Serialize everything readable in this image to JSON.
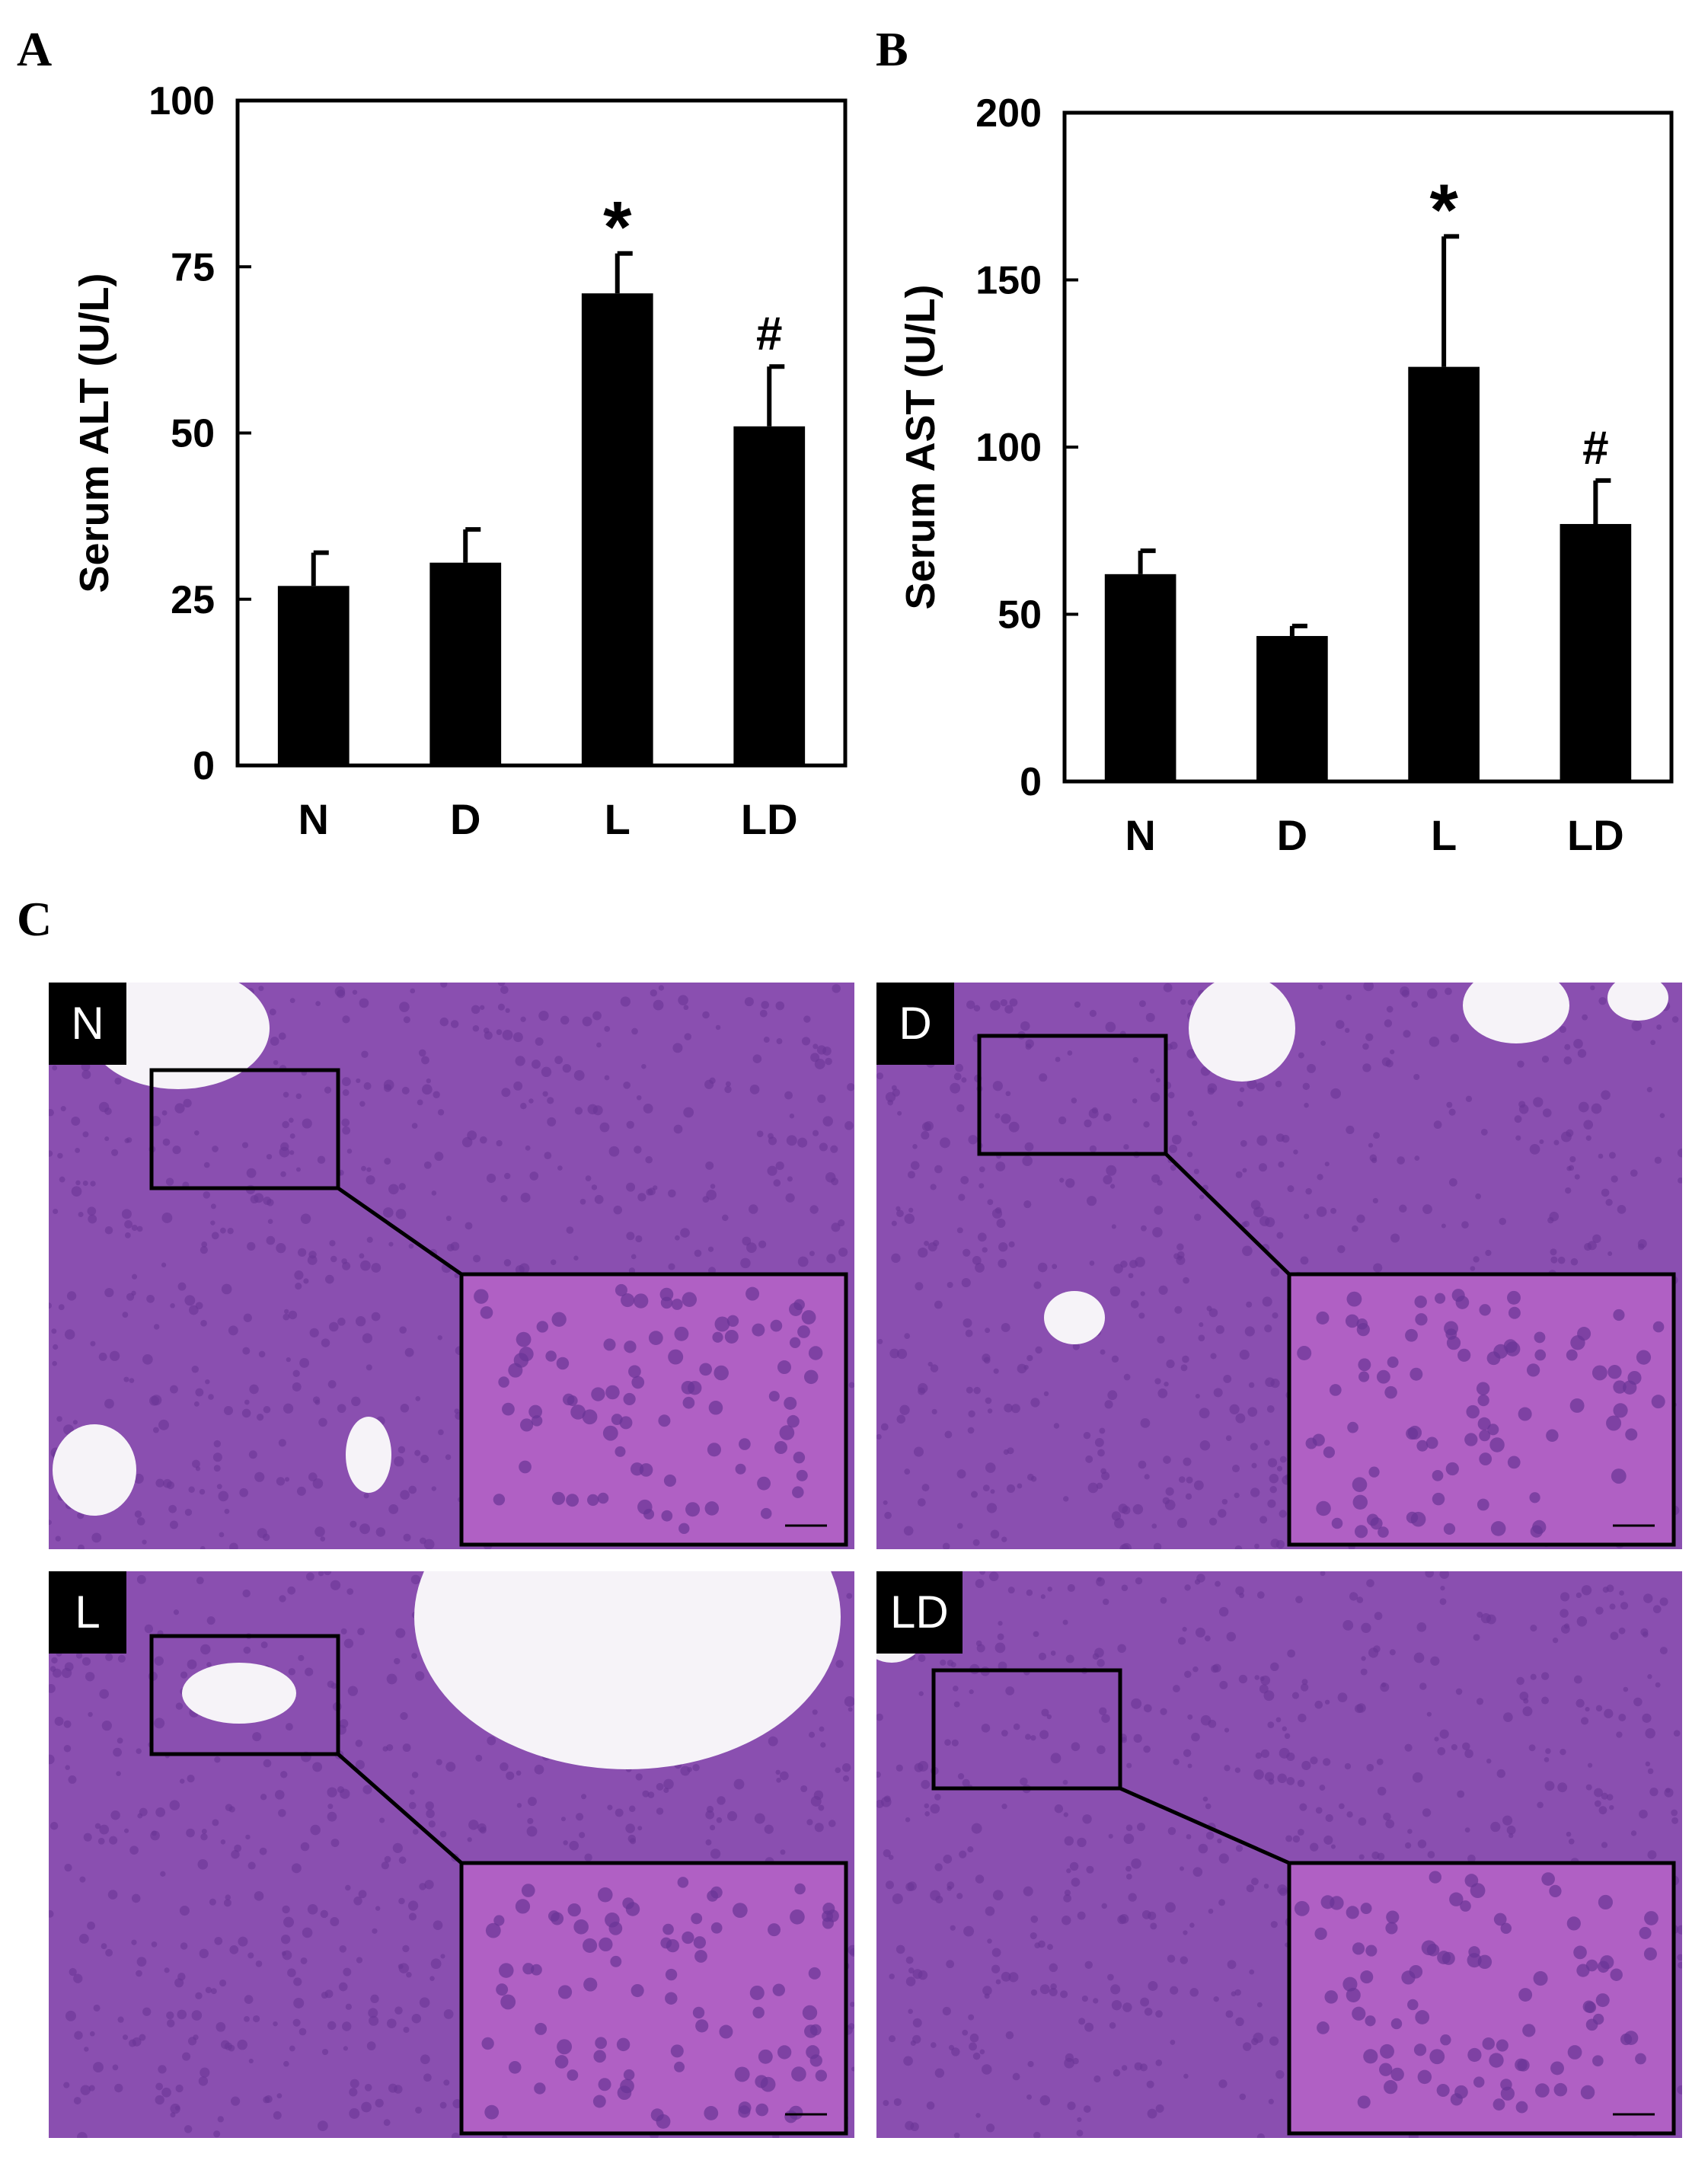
{
  "panels": {
    "a_label": "A",
    "b_label": "B",
    "c_label": "C"
  },
  "chart_data": [
    {
      "type": "bar",
      "categories": [
        "N",
        "D",
        "L",
        "LD"
      ],
      "values": [
        27,
        30.5,
        71,
        51
      ],
      "errors": [
        5,
        5,
        6,
        9
      ],
      "annotations": [
        "",
        "",
        "*",
        "#"
      ],
      "ylabel": "Serum ALT (U/L)",
      "ylim": [
        0,
        100
      ],
      "yticks": [
        0,
        25,
        50,
        75,
        100
      ],
      "grid": false,
      "bar_color": "#000000"
    },
    {
      "type": "bar",
      "categories": [
        "N",
        "D",
        "L",
        "LD"
      ],
      "values": [
        62,
        43.5,
        124,
        77
      ],
      "errors": [
        7,
        3,
        39,
        13
      ],
      "annotations": [
        "",
        "",
        "*",
        "#"
      ],
      "ylabel": "Serum AST (U/L)",
      "ylim": [
        0,
        200
      ],
      "yticks": [
        0,
        50,
        100,
        150,
        200
      ],
      "grid": false,
      "bar_color": "#000000"
    }
  ],
  "micrographs": [
    {
      "label": "N"
    },
    {
      "label": "D"
    },
    {
      "label": "L"
    },
    {
      "label": "LD"
    }
  ],
  "colors": {
    "tissue": "#8a4fb0",
    "tissue_dark": "#6a3596",
    "inset_tissue": "#b060c4",
    "lumen": "#f6f3f8"
  }
}
